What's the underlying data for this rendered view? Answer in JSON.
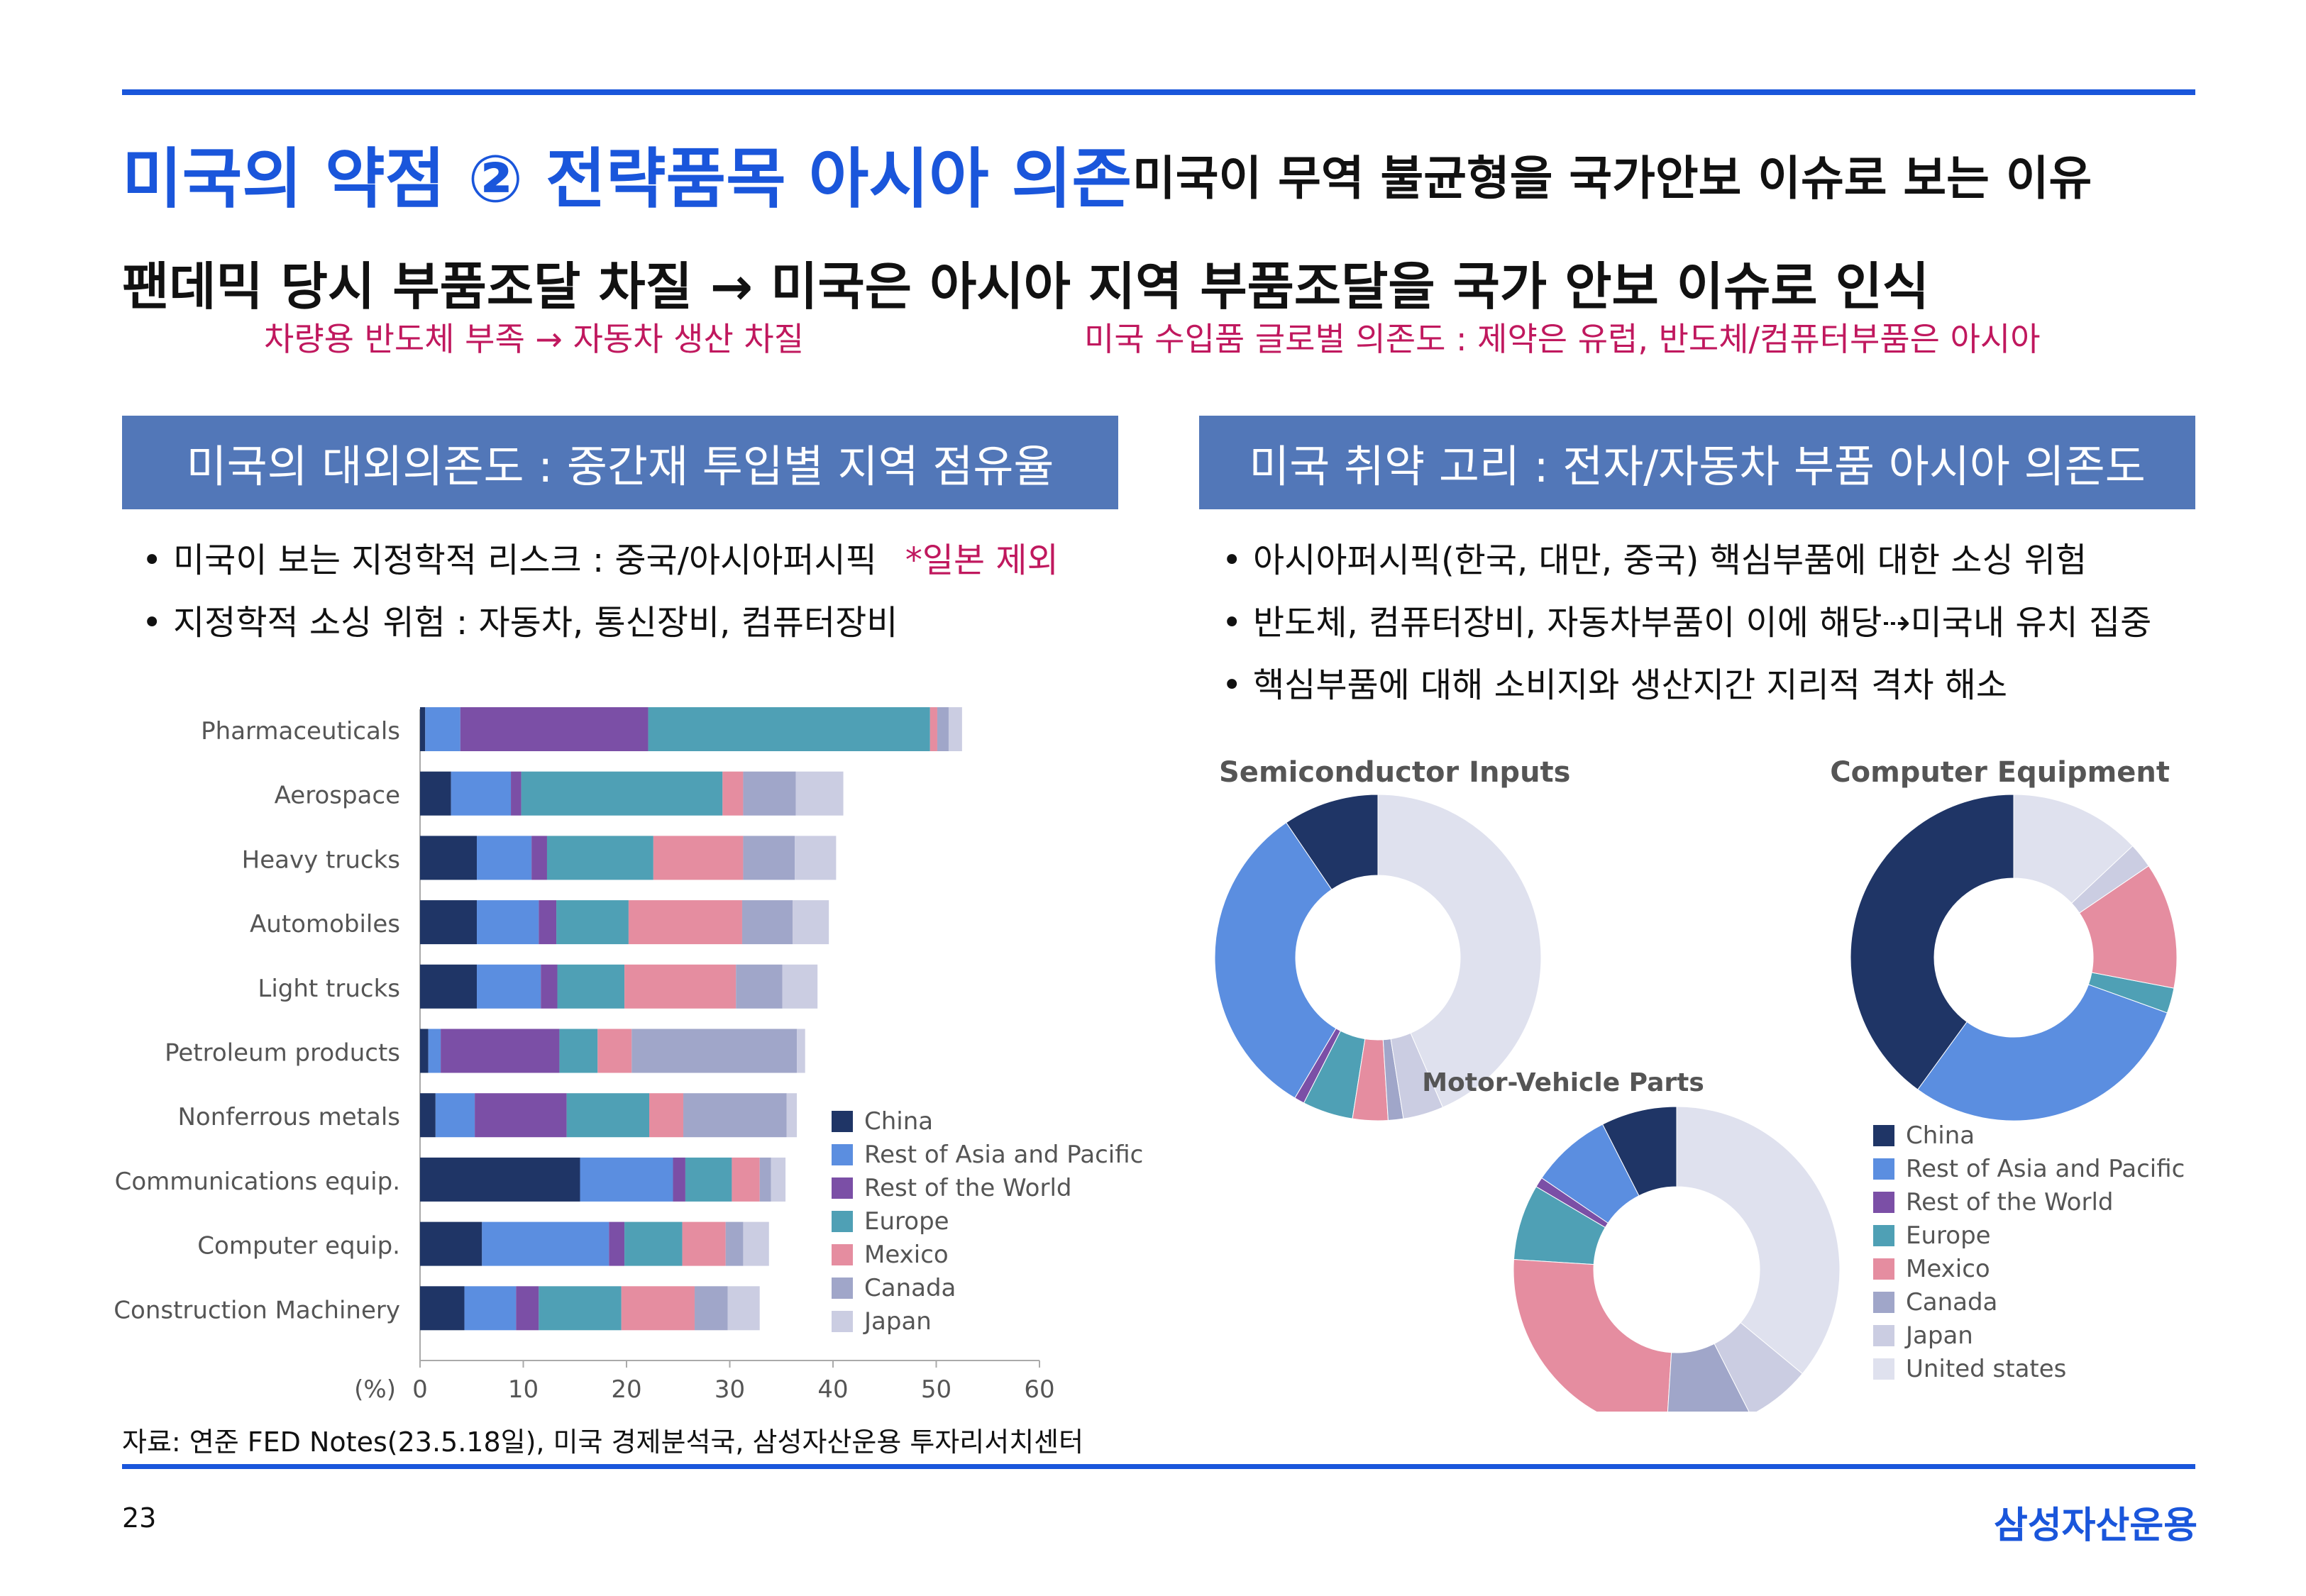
{
  "colors": {
    "accent_blue": "#1a56db",
    "accent_red": "#c0185e",
    "panel_blue": "#5277b8",
    "China": "#1f3566",
    "Rest of Asia and Pacific": "#5b8ee0",
    "Rest of the World": "#7b4fa6",
    "Europe": "#4fa0b5",
    "Mexico": "#e58da0",
    "Canada": "#a0a6c9",
    "Japan": "#cbcde2",
    "United states": "#dfe1ee"
  },
  "title": {
    "main": "미국의 약점 ② 전략품목 아시아 의존",
    "sub": "미국이 무역 불균형을 국가안보 이슈로 보는 이유"
  },
  "headline": "팬데믹 당시 부품조달 차질 →  미국은 아시아 지역 부품조달을 국가 안보 이슈로 인식",
  "notes": {
    "left": "차량용 반도체 부족 → 자동차 생산 차질",
    "right": "미국 수입품  글로벌 의존도 : 제약은 유럽, 반도체/컴퓨터부품은 아시아"
  },
  "left_panel": {
    "header": "미국의 대외의존도 : 중간재 투입별 지역 점유율",
    "bullet_mark": "•",
    "bullets": [
      "미국이 보는 지정학적 리스크 : 중국/아시아퍼시픽",
      "지정학적 소싱 위험 : 자동차, 통신장비, 컴퓨터장비"
    ],
    "bullet_note": "*일본 제외"
  },
  "right_panel": {
    "header": "미국 취약 고리 : 전자/자동차 부품 아시아 의존도",
    "bullet_mark": "•",
    "bullets": [
      "아시아퍼시픽(한국, 대만, 중국) 핵심부품에 대한 소싱 위험",
      "반도체, 컴퓨터장비, 자동차부품이 이에 해당⇢미국내 유치 집중",
      "핵심부품에 대해 소비지와 생산지간 지리적 격차 해소"
    ]
  },
  "chart_data": [
    {
      "type": "bar",
      "orientation": "horizontal",
      "stacked": true,
      "categories": [
        "Pharmaceuticals",
        "Aerospace",
        "Heavy trucks",
        "Automobiles",
        "Light trucks",
        "Petroleum products",
        "Nonferrous metals",
        "Communications equip.",
        "Computer equip.",
        "Construction Machinery"
      ],
      "series": [
        {
          "name": "China",
          "values": [
            0.5,
            3,
            5.5,
            5.5,
            5.5,
            0.8,
            1.5,
            15.5,
            6,
            4.3
          ]
        },
        {
          "name": "Rest of Asia and Pacific",
          "values": [
            3.4,
            5.8,
            5.3,
            6,
            6.2,
            1.2,
            3.8,
            9,
            12.3,
            5
          ]
        },
        {
          "name": "Rest of the World",
          "values": [
            18.2,
            1,
            1.5,
            1.7,
            1.6,
            11.5,
            8.9,
            1.2,
            1.5,
            2.2
          ]
        },
        {
          "name": "Europe",
          "values": [
            27.3,
            19.5,
            10.3,
            7,
            6.5,
            3.7,
            8,
            4.5,
            5.6,
            8
          ]
        },
        {
          "name": "Mexico",
          "values": [
            0.7,
            2,
            8.7,
            11,
            10.8,
            3.3,
            3.3,
            2.7,
            4.2,
            7.1
          ]
        },
        {
          "name": "Canada",
          "values": [
            1.1,
            5.1,
            5,
            4.9,
            4.5,
            16,
            10,
            1.1,
            1.7,
            3.2
          ]
        },
        {
          "name": "Japan",
          "values": [
            1.3,
            4.6,
            4,
            3.5,
            3.4,
            0.8,
            1,
            1.4,
            2.5,
            3.1
          ]
        }
      ],
      "x_axis_unit": "(%)",
      "x_ticks": [
        0,
        10,
        20,
        30,
        40,
        50,
        60
      ],
      "xlim": [
        0,
        60
      ],
      "legend": "right, lower",
      "grid": false
    },
    {
      "type": "pie",
      "donut": true,
      "title": "Semiconductor Inputs",
      "labels": [
        "China",
        "Rest of Asia and Pacific",
        "Rest of the World",
        "Europe",
        "Mexico",
        "Canada",
        "Japan",
        "United states"
      ],
      "values": [
        9.5,
        32,
        1,
        5,
        3.5,
        1.5,
        4,
        43.5
      ]
    },
    {
      "type": "pie",
      "donut": true,
      "title": "Computer Equipment",
      "labels": [
        "China",
        "Rest of Asia and Pacific",
        "Rest of the World",
        "Europe",
        "Mexico",
        "Canada",
        "Japan",
        "United states"
      ],
      "values": [
        40,
        29.5,
        0,
        2.5,
        12.5,
        0,
        2.5,
        13
      ]
    },
    {
      "type": "pie",
      "donut": true,
      "title": "Motor-Vehicle Parts",
      "labels": [
        "China",
        "Rest of Asia and Pacific",
        "Rest of the World",
        "Europe",
        "Mexico",
        "Canada",
        "Japan",
        "United states"
      ],
      "values": [
        7.5,
        8,
        1,
        7.5,
        25,
        8.5,
        6.5,
        36
      ]
    }
  ],
  "legend_pies": [
    "China",
    "Rest of Asia and Pacific",
    "Rest of the World",
    "Europe",
    "Mexico",
    "Canada",
    "Japan",
    "United states"
  ],
  "source": "자료: 연준 FED Notes(23.5.18일), 미국 경제분석국, 삼성자산운용 투자리서치센터",
  "page_number": "23",
  "brand": "삼성자산운용"
}
